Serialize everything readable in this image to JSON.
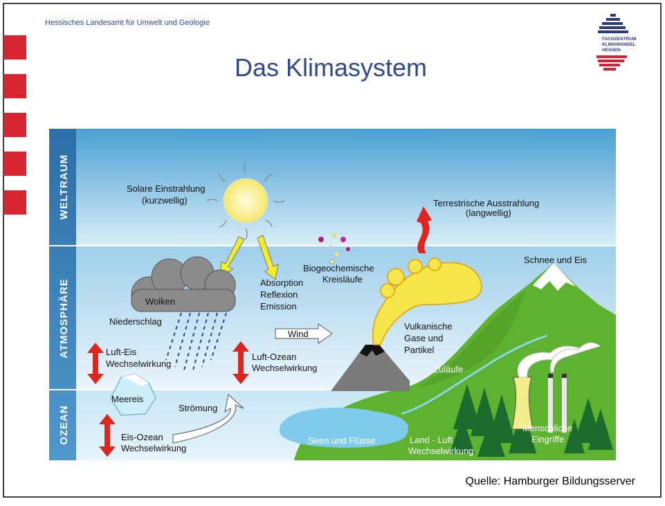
{
  "header": {
    "org": "Hessisches Landesamt  für Umwelt und Geologie",
    "title": "Das Klimasystem",
    "logo": [
      "FACHZENTRUM",
      "KLIMAWANDEL",
      "HESSEN"
    ]
  },
  "diagram": {
    "layers": [
      "WELTRAUM",
      "ATMOSPHÄRE",
      "OZEAN"
    ],
    "labels": [
      {
        "lines": [
          "Solare Einstrahlung",
          "(kurzwellig)"
        ]
      },
      {
        "lines": [
          "Terrestrische Ausstrahlung",
          "(langwellig)"
        ]
      },
      {
        "lines": [
          "Biogeochemische",
          "Kreisläufe"
        ]
      },
      {
        "lines": [
          "Schnee und Eis"
        ]
      },
      {
        "lines": [
          "Absorption",
          "Reflexion",
          "Emission"
        ]
      },
      {
        "lines": [
          "Wolken"
        ]
      },
      {
        "lines": [
          "Niederschlag"
        ]
      },
      {
        "lines": [
          "Wind"
        ]
      },
      {
        "lines": [
          "Vulkanische",
          "Gase und",
          "Partikel"
        ]
      },
      {
        "lines": [
          "Luft-Eis",
          "Wechselwirkung"
        ]
      },
      {
        "lines": [
          "Luft-Ozean",
          "Wechselwirkung"
        ]
      },
      {
        "lines": [
          "Zuläufe"
        ]
      },
      {
        "lines": [
          "Meereis"
        ]
      },
      {
        "lines": [
          "Strömung"
        ]
      },
      {
        "lines": [
          "Eis-Ozean",
          "Wechselwirkung"
        ]
      },
      {
        "lines": [
          "Seen und Flüsse"
        ]
      },
      {
        "lines": [
          "Land - Luft",
          "Wechselwirkung"
        ]
      },
      {
        "lines": [
          "Menschliche",
          "Eingriffe"
        ]
      }
    ]
  },
  "source": "Quelle: Hamburger Bildungsserver"
}
